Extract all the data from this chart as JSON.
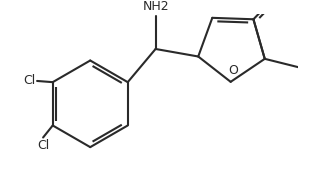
{
  "bg_color": "#ffffff",
  "line_color": "#2a2a2a",
  "lw": 1.5,
  "fs": 9,
  "nh2": "NH2",
  "o": "O",
  "cl_left": "Cl",
  "cl_bottom": "Cl",
  "figsize": [
    3.14,
    1.76
  ],
  "dpi": 100
}
